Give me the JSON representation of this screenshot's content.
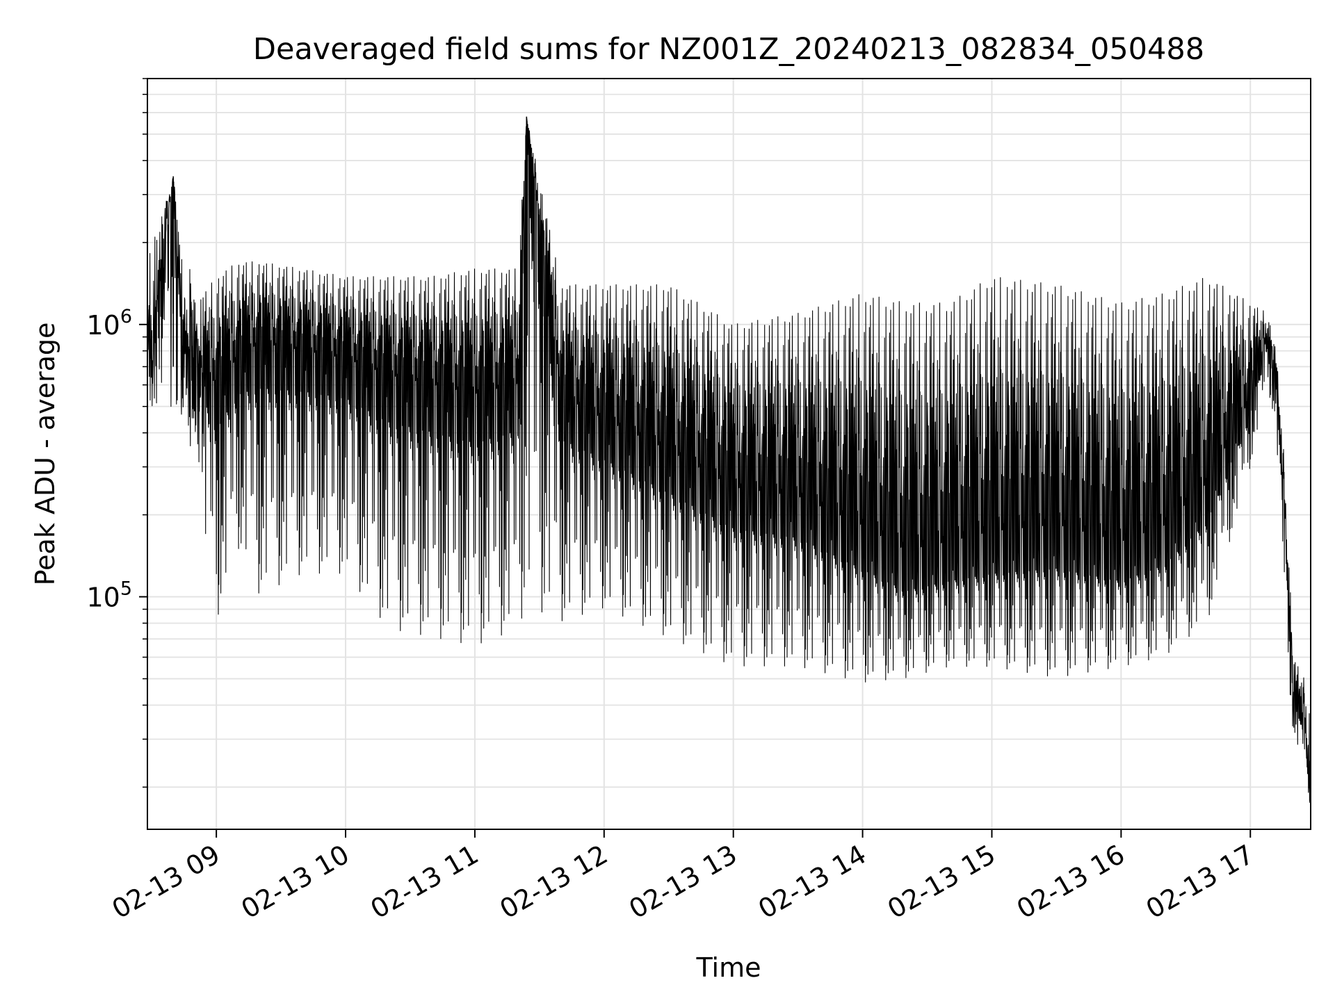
{
  "chart_data": {
    "type": "line",
    "title": "Deaveraged field sums for NZ001Z_20240213_082834_050488",
    "xlabel": "Time",
    "ylabel": "Peak ADU - average",
    "xlim": [
      "2024-02-13 08:28",
      "2024-02-13 17:28"
    ],
    "yscale": "log",
    "ylim": [
      14000,
      8000000
    ],
    "grid": true,
    "line_color": "#000000",
    "x_ticks": [
      "02-13 09",
      "02-13 10",
      "02-13 11",
      "02-13 12",
      "02-13 13",
      "02-13 14",
      "02-13 15",
      "02-13 16",
      "02-13 17"
    ],
    "y_ticks": [
      {
        "base": "10",
        "exp": "5",
        "value": 100000
      },
      {
        "base": "10",
        "exp": "6",
        "value": 1000000
      }
    ],
    "series": [
      {
        "x": [
          "2024-02-13 08:28",
          "2024-02-13 08:40",
          "2024-02-13 08:45",
          "2024-02-13 08:51",
          "2024-02-13 09:00",
          "2024-02-13 09:10",
          "2024-02-13 09:20",
          "2024-02-13 09:40",
          "2024-02-13 10:00",
          "2024-02-13 10:20",
          "2024-02-13 10:40",
          "2024-02-13 11:00",
          "2024-02-13 11:20",
          "2024-02-13 11:24",
          "2024-02-13 11:40",
          "2024-02-13 12:00",
          "2024-02-13 12:30",
          "2024-02-13 13:00",
          "2024-02-13 13:30",
          "2024-02-13 14:00",
          "2024-02-13 14:20",
          "2024-02-13 14:40",
          "2024-02-13 15:00",
          "2024-02-13 15:30",
          "2024-02-13 16:00",
          "2024-02-13 16:20",
          "2024-02-13 16:40",
          "2024-02-13 17:00",
          "2024-02-13 17:08",
          "2024-02-13 17:12",
          "2024-02-13 17:16",
          "2024-02-13 17:20",
          "2024-02-13 17:25",
          "2024-02-13 17:28"
        ],
        "values": [
          700000,
          3500000,
          900000,
          700000,
          550000,
          700000,
          800000,
          750000,
          700000,
          600000,
          550000,
          500000,
          550000,
          5800000,
          500000,
          400000,
          300000,
          220000,
          200000,
          150000,
          120000,
          130000,
          140000,
          150000,
          130000,
          150000,
          220000,
          500000,
          900000,
          600000,
          200000,
          40000,
          35000,
          16000
        ],
        "min_envelope": [
          500000,
          500000,
          450000,
          250000,
          80000,
          150000,
          100000,
          120000,
          120000,
          75000,
          70000,
          65000,
          75000,
          90000,
          80000,
          90000,
          70000,
          55000,
          55000,
          48000,
          50000,
          55000,
          55000,
          50000,
          55000,
          60000,
          80000,
          300000,
          600000,
          400000,
          80000,
          30000,
          25000,
          16000
        ],
        "max_envelope": [
          1700000,
          3500000,
          2000000,
          1200000,
          1500000,
          1700000,
          1700000,
          1600000,
          1500000,
          1500000,
          1500000,
          1600000,
          1600000,
          5800000,
          1400000,
          1400000,
          1400000,
          1000000,
          1100000,
          1300000,
          1200000,
          1200000,
          1500000,
          1400000,
          1200000,
          1300000,
          1500000,
          1200000,
          1100000,
          800000,
          300000,
          60000,
          50000,
          40000
        ]
      }
    ]
  }
}
